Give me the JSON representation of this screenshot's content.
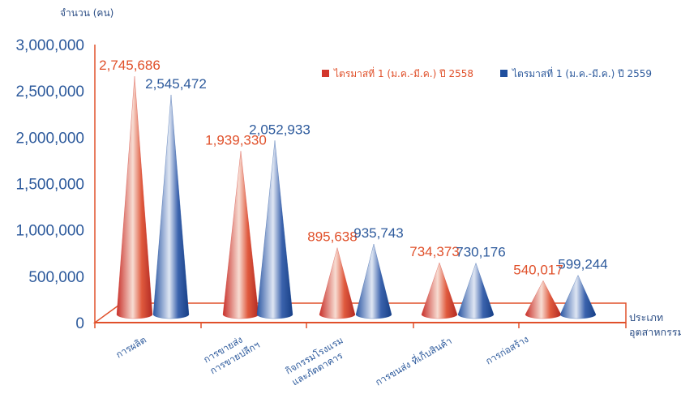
{
  "chart_data": {
    "type": "bar",
    "style": "3d-cone",
    "ylabel": "จำนวน (คน)",
    "xlabel": [
      "ประเภท",
      "อุตสาหกรรม"
    ],
    "ylim": [
      0,
      3000000
    ],
    "yticks": [
      "0",
      "500,000",
      "1,000,000",
      "1,500,000",
      "2,000,000",
      "2,500,000",
      "3,000,000"
    ],
    "categories": [
      [
        "การผลิต"
      ],
      [
        "การขายส่ง",
        "การขายปลีกฯ"
      ],
      [
        "กิจกรรมโรงแรม",
        "และภัตตาคาร"
      ],
      [
        "การขนส่ง ที่เก็บสินค้า"
      ],
      [
        "การก่อสร้าง"
      ]
    ],
    "series": [
      {
        "name": "ไตรมาสที่ 1 (ม.ค.-มี.ค.) ปี 2558",
        "color": "#d2362c",
        "label_color": "#e0502a",
        "values": [
          2745686,
          1939330,
          895638,
          734373,
          540017
        ],
        "labels": [
          "2,745,686",
          "1,939,330",
          "895,638",
          "734,373",
          "540,017"
        ]
      },
      {
        "name": "ไตรมาสที่ 1 (ม.ค.-มี.ค.) ปี 2559",
        "color": "#1f4f9e",
        "label_color": "#2d5a9c",
        "values": [
          2545472,
          2052933,
          935743,
          730176,
          599244
        ],
        "labels": [
          "2,545,472",
          "2,052,933",
          "935,743",
          "730,176",
          "599,244"
        ]
      }
    ],
    "legend_position": "top-right",
    "grid": false,
    "floor_color": "#e0502a"
  }
}
